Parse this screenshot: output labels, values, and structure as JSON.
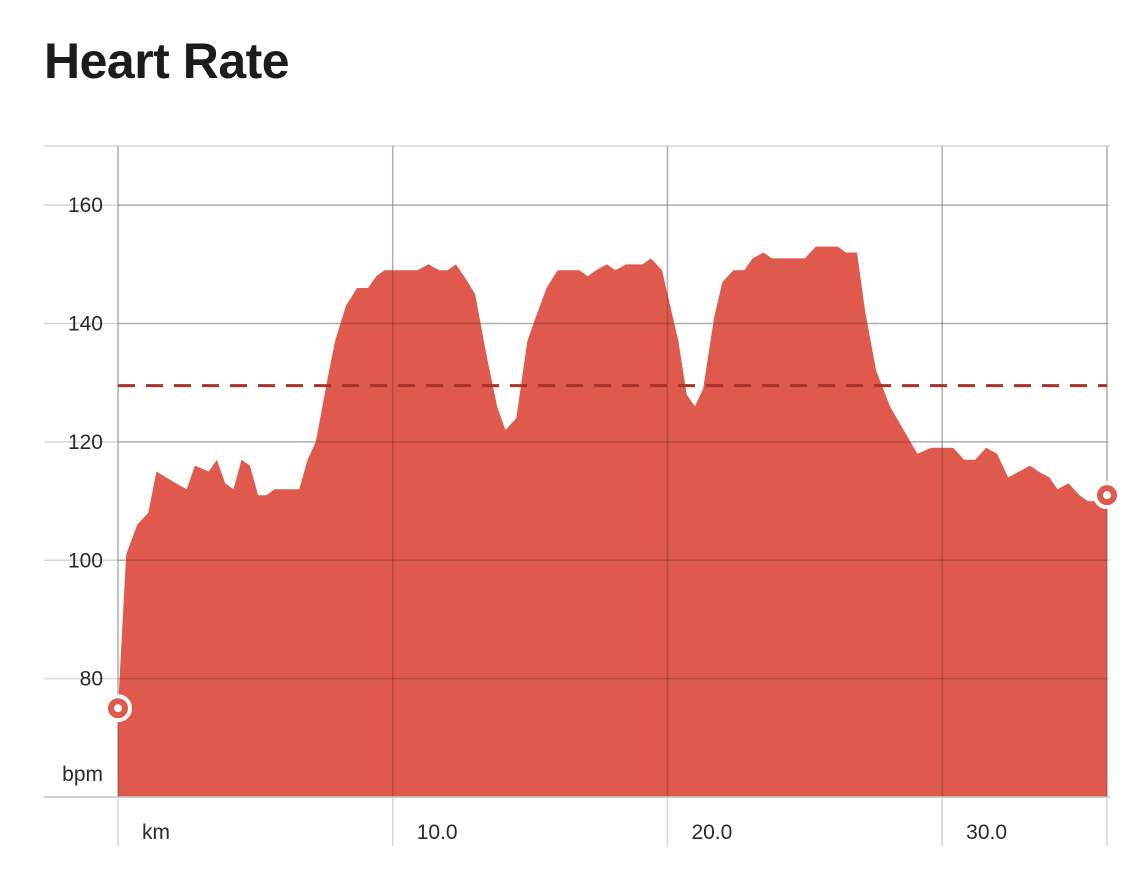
{
  "title": "Heart Rate",
  "colors": {
    "fill": "#df594d",
    "average_line": "#a83228",
    "grid": "#d6d6d6",
    "marker_stroke": "#ffffff"
  },
  "chart_data": {
    "type": "area",
    "title": "Heart Rate",
    "x_unit_label": "km",
    "y_unit_label": "bpm",
    "xlim": [
      0,
      36
    ],
    "ylim": [
      60,
      170
    ],
    "x_ticks": [
      10,
      20,
      30
    ],
    "x_tick_labels": [
      "10.0",
      "20.0",
      "30.0"
    ],
    "y_ticks": [
      80,
      100,
      120,
      140,
      160
    ],
    "y_tick_labels": [
      "80",
      "100",
      "120",
      "140",
      "160"
    ],
    "grid": true,
    "average_bpm": 129.5,
    "series": [
      {
        "x": [
          0,
          0.3,
          0.7,
          1.1,
          1.4,
          2.1,
          2.5,
          2.8,
          3.3,
          3.6,
          3.9,
          4.2,
          4.5,
          4.8,
          5.1,
          5.4,
          5.7,
          6.0,
          6.3,
          6.6,
          6.9,
          7.2,
          7.6,
          7.9,
          8.3,
          8.7,
          9.1,
          9.4,
          9.7,
          10.1,
          10.5,
          10.9,
          11.3,
          11.7,
          12.0,
          12.3,
          12.6,
          13.0,
          13.4,
          13.8,
          14.1,
          14.5,
          14.9,
          15.2,
          15.6,
          16.0,
          16.4,
          16.8,
          17.1,
          17.4,
          17.8,
          18.1,
          18.5,
          18.8,
          19.1,
          19.4,
          19.8,
          20.1,
          20.4,
          20.7,
          21.0,
          21.3,
          21.7,
          22.0,
          22.4,
          22.8,
          23.1,
          23.5,
          23.8,
          24.2,
          24.6,
          25.0,
          25.4,
          25.8,
          26.2,
          26.5,
          26.9,
          27.2,
          27.6,
          28.1,
          28.6,
          29.1,
          29.6,
          30.0,
          30.4,
          30.8,
          31.2,
          31.6,
          32.0,
          32.4,
          32.8,
          33.2,
          33.5,
          33.9,
          34.2,
          34.6,
          35.0,
          35.3,
          35.7,
          36.0
        ],
        "values": [
          75,
          101,
          106,
          108,
          115,
          113,
          112,
          116,
          115,
          117,
          113,
          112,
          117,
          116,
          111,
          111,
          112,
          112,
          112,
          112,
          117,
          120,
          130,
          137,
          143,
          146,
          146,
          148,
          149,
          149,
          149,
          149,
          150,
          149,
          149,
          150,
          148,
          145,
          135,
          126,
          122,
          124,
          137,
          141,
          146,
          149,
          149,
          149,
          148,
          149,
          150,
          149,
          150,
          150,
          150,
          151,
          149,
          143,
          137,
          128,
          126,
          129,
          141,
          147,
          149,
          149,
          151,
          152,
          151,
          151,
          151,
          151,
          153,
          153,
          153,
          152,
          152,
          142,
          132,
          126,
          122,
          118,
          119,
          119,
          119,
          117,
          117,
          119,
          118,
          114,
          115,
          116,
          115,
          114,
          112,
          113,
          111,
          110,
          110,
          111
        ]
      }
    ]
  }
}
